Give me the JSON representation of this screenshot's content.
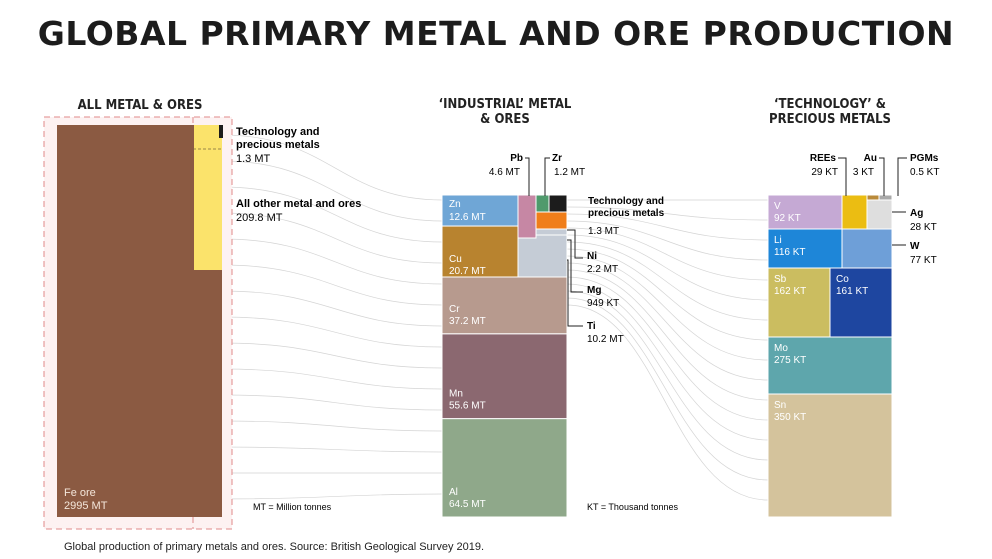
{
  "title": "GLOBAL PRIMARY METAL AND ORE PRODUCTION",
  "caption": "Global production of primary metals and ores. Source: British Geological Survey 2019.",
  "colors": {
    "fe": "#8b5a42",
    "other": "#fbe36b",
    "tech": "#1c1c1c",
    "connector": "#c9c9c9",
    "frame": "#e08a8a"
  },
  "chart_data": [
    {
      "type": "bar",
      "panel": "all",
      "heading": "ALL METAL & ORES",
      "unit_note": "MT = Million tonnes",
      "items": [
        {
          "name": "Fe ore",
          "value": 2995,
          "label": "2995 MT",
          "color": "#8b5a42"
        },
        {
          "name": "All other metal and ores",
          "value": 209.8,
          "label": "209.8 MT",
          "color": "#fbe36b"
        },
        {
          "name": "Technology and precious metals",
          "value": 1.3,
          "label": "1.3 MT",
          "color": "#1c1c1c"
        }
      ]
    },
    {
      "type": "bar",
      "panel": "industrial",
      "heading": "‘INDUSTRIAL’ METAL & ORES",
      "unit_note": "KT = Thousand tonnes",
      "items": [
        {
          "name": "Al",
          "value": 64.5,
          "label": "64.5 MT",
          "color": "#8fa88a"
        },
        {
          "name": "Mn",
          "value": 55.6,
          "label": "55.6 MT",
          "color": "#8b6870"
        },
        {
          "name": "Cr",
          "value": 37.2,
          "label": "37.2 MT",
          "color": "#b79a8e"
        },
        {
          "name": "Cu",
          "value": 20.7,
          "label": "20.7 MT",
          "color": "#b8832f"
        },
        {
          "name": "Zn",
          "value": 12.6,
          "label": "12.6 MT",
          "color": "#6fa6d6"
        },
        {
          "name": "Ti",
          "value": 10.2,
          "label": "10.2 MT",
          "color": "#c5ccd6"
        },
        {
          "name": "Pb",
          "value": 4.6,
          "label": "4.6 MT",
          "color": "#c687a4"
        },
        {
          "name": "Ni",
          "value": 2.2,
          "label": "2.2 MT",
          "color": "#f07e1a"
        },
        {
          "name": "Technology and precious metals",
          "value": 1.3,
          "label": "1.3 MT",
          "color": "#1c1c1c"
        },
        {
          "name": "Zr",
          "value": 1.2,
          "label": "1.2 MT",
          "color": "#4f9a6c"
        },
        {
          "name": "Mg",
          "value": 0.949,
          "label": "949 KT",
          "color": "#c5ccd6"
        }
      ]
    },
    {
      "type": "bar",
      "panel": "technology",
      "heading": "‘TECHNOLOGY’ & PRECIOUS METALS",
      "items": [
        {
          "name": "Sn",
          "value": 350,
          "label": "350 KT",
          "color": "#d4c39c"
        },
        {
          "name": "Mo",
          "value": 275,
          "label": "275 KT",
          "color": "#5ea6ac"
        },
        {
          "name": "Sb",
          "value": 162,
          "label": "162 KT",
          "color": "#cbbd60"
        },
        {
          "name": "Co",
          "value": 161,
          "label": "161 KT",
          "color": "#1e46a0"
        },
        {
          "name": "Li",
          "value": 116,
          "label": "116 KT",
          "color": "#1e86d8"
        },
        {
          "name": "V",
          "value": 92,
          "label": "92 KT",
          "color": "#c5a9d4"
        },
        {
          "name": "W",
          "value": 77,
          "label": "77 KT",
          "color": "#6e9fd8"
        },
        {
          "name": "REEs",
          "value": 29,
          "label": "29 KT",
          "color": "#ebbd12"
        },
        {
          "name": "Ag",
          "value": 28,
          "label": "28 KT",
          "color": "#dedede"
        },
        {
          "name": "Au",
          "value": 3,
          "label": "3 KT",
          "color": "#b98a3a"
        },
        {
          "name": "PGMs",
          "value": 0.5,
          "label": "0.5 KT",
          "color": "#a9a9a9"
        }
      ]
    }
  ]
}
